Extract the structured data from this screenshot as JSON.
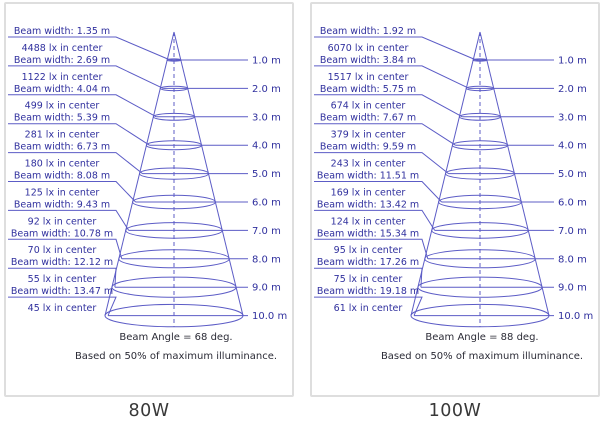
{
  "colors": {
    "line": "#5c5cc6",
    "label_text": "#30309e",
    "note_text": "#2b2b36",
    "caption_text": "#383838",
    "panel_border": "#dedede",
    "background": "#ffffff"
  },
  "chart_data": [
    {
      "type": "cone-diagram",
      "title": "80W",
      "beam_angle_deg": 68,
      "beam_angle_label": "Beam Angle = 68 deg.",
      "footnote": "Based on 50% of maximum illuminance.",
      "distance_axis_unit": "m",
      "levels": [
        {
          "distance_m": 1.0,
          "distance_label": "1.0 m",
          "beam_width_m": 1.35,
          "beam_width_label": "Beam width: 1.35 m",
          "lux": 4488,
          "lux_label": "4488 lx in center"
        },
        {
          "distance_m": 2.0,
          "distance_label": "2.0 m",
          "beam_width_m": 2.69,
          "beam_width_label": "Beam width: 2.69 m",
          "lux": 1122,
          "lux_label": "1122 lx in center"
        },
        {
          "distance_m": 3.0,
          "distance_label": "3.0 m",
          "beam_width_m": 4.04,
          "beam_width_label": "Beam width: 4.04 m",
          "lux": 499,
          "lux_label": "499 lx in center"
        },
        {
          "distance_m": 4.0,
          "distance_label": "4.0 m",
          "beam_width_m": 5.39,
          "beam_width_label": "Beam width: 5.39 m",
          "lux": 281,
          "lux_label": "281 lx in center"
        },
        {
          "distance_m": 5.0,
          "distance_label": "5.0 m",
          "beam_width_m": 6.73,
          "beam_width_label": "Beam width: 6.73 m",
          "lux": 180,
          "lux_label": "180 lx in center"
        },
        {
          "distance_m": 6.0,
          "distance_label": "6.0 m",
          "beam_width_m": 8.08,
          "beam_width_label": "Beam width: 8.08 m",
          "lux": 125,
          "lux_label": "125 lx in center"
        },
        {
          "distance_m": 7.0,
          "distance_label": "7.0 m",
          "beam_width_m": 9.43,
          "beam_width_label": "Beam width: 9.43 m",
          "lux": 92,
          "lux_label": "92 lx in center"
        },
        {
          "distance_m": 8.0,
          "distance_label": "8.0 m",
          "beam_width_m": 10.78,
          "beam_width_label": "Beam width: 10.78 m",
          "lux": 70,
          "lux_label": "70 lx in center"
        },
        {
          "distance_m": 9.0,
          "distance_label": "9.0 m",
          "beam_width_m": 12.12,
          "beam_width_label": "Beam width: 12.12 m",
          "lux": 55,
          "lux_label": "55 lx in center"
        },
        {
          "distance_m": 10.0,
          "distance_label": "10.0 m",
          "beam_width_m": 13.47,
          "beam_width_label": "Beam width: 13.47 m",
          "lux": 45,
          "lux_label": "45 lx in center"
        }
      ]
    },
    {
      "type": "cone-diagram",
      "title": "100W",
      "beam_angle_deg": 88,
      "beam_angle_label": "Beam Angle = 88 deg.",
      "footnote": "Based on 50% of maximum illuminance.",
      "distance_axis_unit": "m",
      "levels": [
        {
          "distance_m": 1.0,
          "distance_label": "1.0 m",
          "beam_width_m": 1.92,
          "beam_width_label": "Beam width: 1.92 m",
          "lux": 6070,
          "lux_label": "6070 lx in center"
        },
        {
          "distance_m": 2.0,
          "distance_label": "2.0 m",
          "beam_width_m": 3.84,
          "beam_width_label": "Beam width: 3.84 m",
          "lux": 1517,
          "lux_label": "1517 lx in center"
        },
        {
          "distance_m": 3.0,
          "distance_label": "3.0 m",
          "beam_width_m": 5.75,
          "beam_width_label": "Beam width: 5.75 m",
          "lux": 674,
          "lux_label": "674 lx in center"
        },
        {
          "distance_m": 4.0,
          "distance_label": "4.0 m",
          "beam_width_m": 7.67,
          "beam_width_label": "Beam width: 7.67 m",
          "lux": 379,
          "lux_label": "379 lx in center"
        },
        {
          "distance_m": 5.0,
          "distance_label": "5.0 m",
          "beam_width_m": 9.59,
          "beam_width_label": "Beam width: 9.59 m",
          "lux": 243,
          "lux_label": "243 lx in center"
        },
        {
          "distance_m": 6.0,
          "distance_label": "6.0 m",
          "beam_width_m": 11.51,
          "beam_width_label": "Beam width: 11.51 m",
          "lux": 169,
          "lux_label": "169 lx in center"
        },
        {
          "distance_m": 7.0,
          "distance_label": "7.0 m",
          "beam_width_m": 13.42,
          "beam_width_label": "Beam width: 13.42 m",
          "lux": 124,
          "lux_label": "124 lx in center"
        },
        {
          "distance_m": 8.0,
          "distance_label": "8.0 m",
          "beam_width_m": 15.34,
          "beam_width_label": "Beam width: 15.34 m",
          "lux": 95,
          "lux_label": "95 lx in center"
        },
        {
          "distance_m": 9.0,
          "distance_label": "9.0 m",
          "beam_width_m": 17.26,
          "beam_width_label": "Beam width: 17.26 m",
          "lux": 75,
          "lux_label": "75 lx in center"
        },
        {
          "distance_m": 10.0,
          "distance_label": "10.0 m",
          "beam_width_m": 19.18,
          "beam_width_label": "Beam width: 19.18 m",
          "lux": 61,
          "lux_label": "61 lx in center"
        }
      ]
    }
  ]
}
